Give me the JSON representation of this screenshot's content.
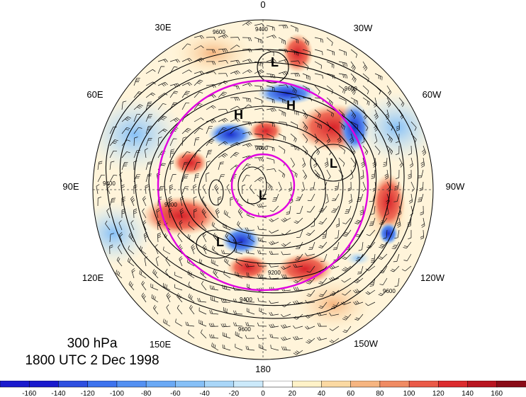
{
  "title": {
    "level": "300 hPa",
    "time": "1800 UTC 2 Dec 1998"
  },
  "longitude_labels": [
    "0",
    "30W",
    "60W",
    "90W",
    "120W",
    "150W",
    "180",
    "150E",
    "120E",
    "90E",
    "60E",
    "30E"
  ],
  "pressure_centers": [
    {
      "label": "L"
    },
    {
      "label": "H"
    },
    {
      "label": "H"
    },
    {
      "label": "L"
    },
    {
      "label": "L"
    },
    {
      "label": "L"
    }
  ],
  "contour_labels": [
    "9600",
    "9400",
    "9000",
    "9200",
    "9600",
    "9400",
    "9200",
    "9600",
    "9400",
    "9600"
  ],
  "colorbar": {
    "ticks": [
      "-160",
      "-140",
      "-120",
      "-100",
      "-80",
      "-60",
      "-40",
      "-20",
      "0",
      "20",
      "40",
      "60",
      "80",
      "100",
      "120",
      "140",
      "160"
    ],
    "colors": [
      "#1a1acd",
      "#2e4fe0",
      "#3d73ee",
      "#5390f2",
      "#6aa9f5",
      "#86c0f7",
      "#a9d6f8",
      "#cbe9fa",
      "#ffffff",
      "#fff2c8",
      "#fbd9a2",
      "#f6b580",
      "#f08b63",
      "#ea5a48",
      "#dc2b2e",
      "#b91521",
      "#8a0c18"
    ]
  }
}
